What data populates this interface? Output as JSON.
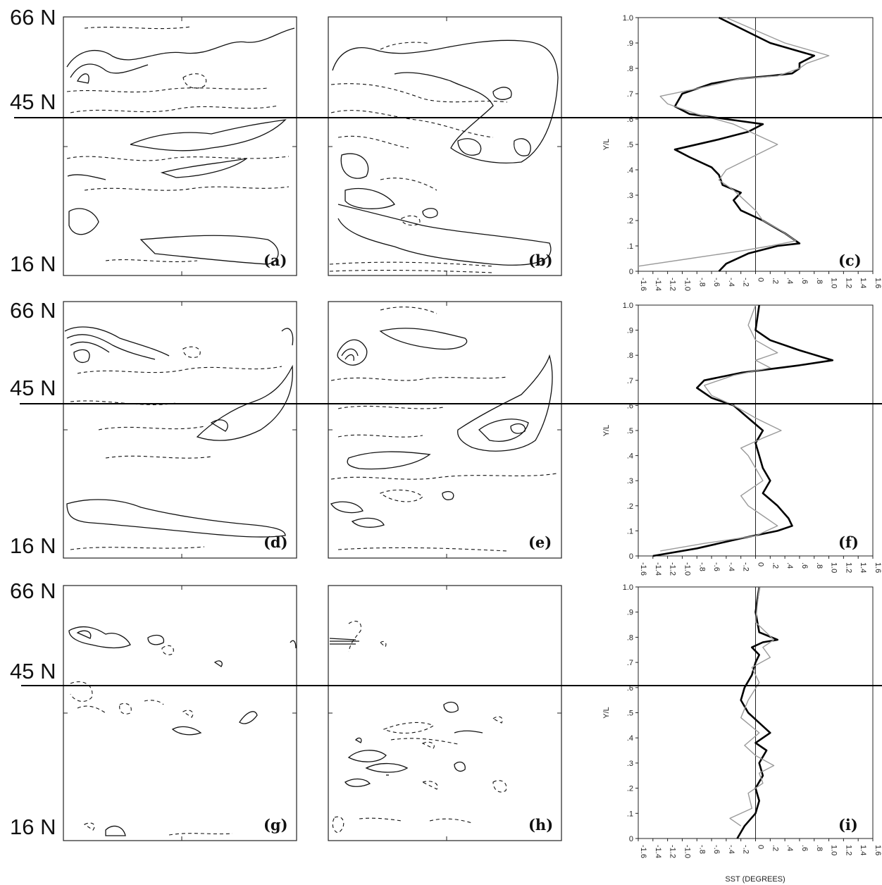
{
  "latitude_labels": {
    "north": "66 N",
    "mid": "45 N",
    "south": "16 N"
  },
  "panel_labels": [
    "(a)",
    "(b)",
    "(c)",
    "(d)",
    "(e)",
    "(f)",
    "(g)",
    "(h)",
    "(i)"
  ],
  "colors": {
    "thick_line": "#000000",
    "thin_line": "#9a9a9a",
    "contour": "#111111"
  },
  "chart_data": [
    {
      "type": "line",
      "panel": "(c)",
      "xlabel": "",
      "ylabel": "Y/L",
      "xlim": [
        -1.6,
        1.6
      ],
      "ylim": [
        0,
        1
      ],
      "x_ticks": [
        "-1.6",
        "-1.4",
        "-1.2",
        "-1.0",
        "-.8",
        "-.6",
        "-.4",
        "-.2",
        "0",
        ".2",
        ".4",
        ".6",
        ".8",
        "1.0",
        "1.2",
        "1.4",
        "1.6"
      ],
      "y_ticks": [
        "0",
        ".1",
        ".2",
        ".3",
        ".4",
        ".5",
        ".6",
        ".7",
        ".8",
        ".9",
        "1.0"
      ],
      "series": [
        {
          "style": "thick",
          "x": [
            -0.5,
            -0.4,
            -0.1,
            0.3,
            0.6,
            0.4,
            0.1,
            -0.2,
            -0.3,
            -0.2,
            -0.45,
            -0.5,
            -0.6,
            -0.9,
            -1.1,
            -0.5,
            -0.1,
            0.1,
            -0.4,
            -0.9,
            -1.1,
            -1.0,
            -0.6,
            -0.2,
            0.2,
            0.5,
            0.6,
            0.6,
            0.8,
            0.2,
            -0.5
          ],
          "y": [
            0,
            0.03,
            0.07,
            0.1,
            0.11,
            0.15,
            0.2,
            0.24,
            0.28,
            0.31,
            0.34,
            0.38,
            0.41,
            0.45,
            0.48,
            0.52,
            0.55,
            0.58,
            0.6,
            0.62,
            0.65,
            0.7,
            0.74,
            0.76,
            0.77,
            0.78,
            0.8,
            0.82,
            0.85,
            0.9,
            1.0
          ]
        },
        {
          "style": "thin",
          "x": [
            -1.6,
            -0.9,
            -0.2,
            0.2,
            0.55,
            0.35,
            0.1,
            0.0,
            -0.15,
            -0.3,
            -0.5,
            -0.4,
            0.3,
            0.0,
            -0.3,
            -0.8,
            -1.2,
            -1.3,
            -0.8,
            -0.2,
            0.3,
            0.6,
            0.7,
            1.0,
            0.4,
            -0.4
          ],
          "y": [
            0.02,
            0.05,
            0.08,
            0.1,
            0.12,
            0.16,
            0.2,
            0.24,
            0.28,
            0.32,
            0.36,
            0.4,
            0.5,
            0.54,
            0.58,
            0.62,
            0.66,
            0.69,
            0.72,
            0.76,
            0.77,
            0.8,
            0.82,
            0.85,
            0.9,
            1.0
          ]
        }
      ]
    },
    {
      "type": "line",
      "panel": "(f)",
      "xlabel": "",
      "ylabel": "Y/L",
      "xlim": [
        -1.6,
        1.6
      ],
      "ylim": [
        0,
        1
      ],
      "x_ticks": [
        "-1.6",
        "-1.4",
        "-1.2",
        "-1.0",
        "-.8",
        "-.6",
        "-.4",
        "-.2",
        "0",
        ".2",
        ".4",
        ".6",
        ".8",
        "1.0",
        "1.2",
        "1.4",
        "1.6"
      ],
      "y_ticks": [
        "0",
        ".1",
        ".2",
        ".3",
        ".4",
        ".5",
        ".6",
        ".7",
        ".8",
        ".9",
        "1.0"
      ],
      "series": [
        {
          "style": "thick",
          "x": [
            -1.4,
            -0.8,
            -0.2,
            0.3,
            0.5,
            0.45,
            0.3,
            0.1,
            0.2,
            0.1,
            0.05,
            0.0,
            0.1,
            -0.1,
            -0.3,
            -0.6,
            -0.8,
            -0.7,
            -0.2,
            0.6,
            1.05,
            0.6,
            0.2,
            0.0,
            0.05
          ],
          "y": [
            0,
            0.03,
            0.07,
            0.1,
            0.12,
            0.15,
            0.2,
            0.25,
            0.3,
            0.35,
            0.4,
            0.45,
            0.5,
            0.55,
            0.6,
            0.63,
            0.67,
            0.7,
            0.73,
            0.76,
            0.78,
            0.82,
            0.86,
            0.9,
            1.0
          ]
        },
        {
          "style": "thin",
          "x": [
            -1.3,
            -0.7,
            0.0,
            0.3,
            0.1,
            -0.1,
            -0.2,
            0.1,
            0.0,
            -0.1,
            -0.2,
            0.1,
            0.35,
            0.0,
            -0.3,
            -0.6,
            -0.7,
            -0.3,
            0.2,
            0.0,
            0.3,
            0.0,
            -0.1,
            0.0
          ],
          "y": [
            0.02,
            0.05,
            0.08,
            0.12,
            0.16,
            0.2,
            0.24,
            0.3,
            0.35,
            0.4,
            0.43,
            0.47,
            0.5,
            0.55,
            0.6,
            0.64,
            0.68,
            0.72,
            0.75,
            0.78,
            0.81,
            0.86,
            0.92,
            1.0
          ]
        }
      ]
    },
    {
      "type": "line",
      "panel": "(i)",
      "xlabel": "SST (DEGREES)",
      "ylabel": "Y/L",
      "xlim": [
        -1.6,
        1.6
      ],
      "ylim": [
        0,
        1
      ],
      "x_ticks": [
        "-1.6",
        "-1.4",
        "-1.2",
        "-1.0",
        "-.8",
        "-.6",
        "-.4",
        "-.2",
        "0",
        ".2",
        ".4",
        ".6",
        ".8",
        "1.0",
        "1.2",
        "1.4",
        "1.6"
      ],
      "y_ticks": [
        "0",
        ".1",
        ".2",
        ".3",
        ".4",
        ".5",
        ".6",
        ".7",
        ".8",
        ".9",
        "1.0"
      ],
      "series": [
        {
          "style": "thick",
          "x": [
            -0.25,
            -0.15,
            0.0,
            0.05,
            0.0,
            0.1,
            0.05,
            0.15,
            0.0,
            0.2,
            0.05,
            -0.1,
            -0.2,
            -0.15,
            -0.05,
            0.0,
            0.05,
            -0.05,
            0.1,
            0.3,
            0.05,
            0.0,
            0.05
          ],
          "y": [
            0,
            0.05,
            0.1,
            0.15,
            0.2,
            0.25,
            0.3,
            0.35,
            0.38,
            0.42,
            0.46,
            0.5,
            0.55,
            0.6,
            0.65,
            0.7,
            0.73,
            0.76,
            0.78,
            0.79,
            0.82,
            0.9,
            1.0
          ]
        },
        {
          "style": "thin",
          "x": [
            -0.2,
            -0.35,
            -0.05,
            -0.1,
            0.1,
            0.05,
            0.25,
            0.0,
            -0.15,
            0.05,
            -0.2,
            -0.1,
            0.05,
            -0.05,
            0.2,
            0.1,
            0.25,
            0.0,
            0.05
          ],
          "y": [
            0.05,
            0.08,
            0.12,
            0.18,
            0.22,
            0.26,
            0.29,
            0.33,
            0.37,
            0.42,
            0.48,
            0.55,
            0.62,
            0.68,
            0.72,
            0.76,
            0.79,
            0.86,
            1.0
          ]
        }
      ]
    }
  ]
}
